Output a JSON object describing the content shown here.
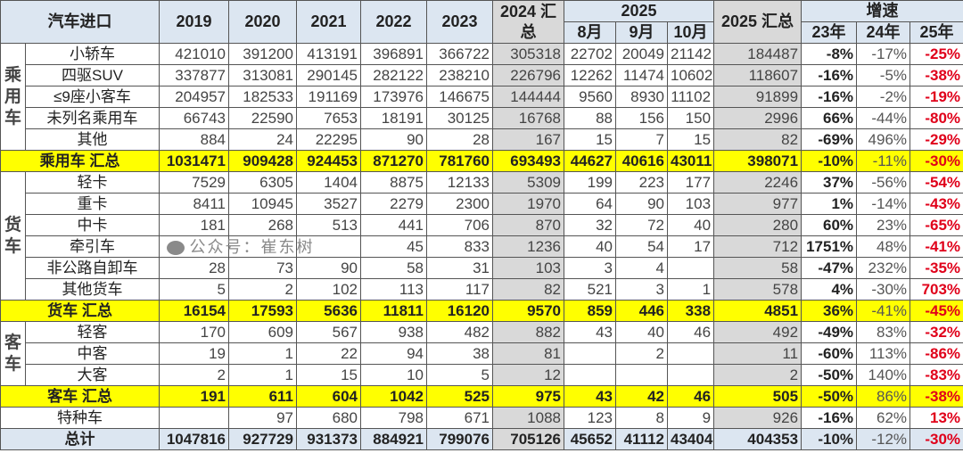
{
  "header": {
    "title": "汽车进口",
    "years": [
      "2019",
      "2020",
      "2021",
      "2022",
      "2023"
    ],
    "total2024": "2024 汇总",
    "year2025": "2025",
    "months": [
      "8月",
      "9月",
      "10月"
    ],
    "total2025": "2025 汇总",
    "growth": "增速",
    "growth_cols": [
      "23年",
      "24年",
      "25年"
    ]
  },
  "colors": {
    "header": "#dce6f1",
    "gray": "#d9d9d9",
    "subtotal": "#ffff00",
    "negative": "#e0001a"
  },
  "groups": [
    {
      "category": "乘用车",
      "rows": [
        {
          "name": "小轿车",
          "values": [
            "421010",
            "391200",
            "413191",
            "396891",
            "366722",
            "305318",
            "22702",
            "20049",
            "21142",
            "184487",
            "-8%",
            "-17%",
            "-25%"
          ]
        },
        {
          "name": "四驱SUV",
          "values": [
            "337877",
            "313081",
            "290145",
            "282122",
            "238210",
            "226796",
            "12262",
            "11474",
            "10602",
            "118607",
            "-16%",
            "-5%",
            "-38%"
          ]
        },
        {
          "name": "≤9座小客车",
          "values": [
            "204957",
            "182533",
            "191169",
            "173976",
            "146675",
            "144444",
            "9560",
            "8930",
            "11102",
            "91899",
            "-16%",
            "-2%",
            "-19%"
          ]
        },
        {
          "name": "未列名乘用车",
          "values": [
            "66743",
            "22590",
            "7653",
            "18191",
            "30125",
            "16768",
            "88",
            "156",
            "150",
            "2996",
            "66%",
            "-44%",
            "-80%"
          ]
        },
        {
          "name": "其他",
          "values": [
            "884",
            "24",
            "22295",
            "90",
            "28",
            "167",
            "15",
            "7",
            "15",
            "82",
            "-69%",
            "496%",
            "-29%"
          ]
        }
      ],
      "subtotal": {
        "name": "乘用车 汇总",
        "values": [
          "1031471",
          "909428",
          "924453",
          "871270",
          "781760",
          "693493",
          "44627",
          "40616",
          "43011",
          "398071",
          "-10%",
          "-11%",
          "-30%"
        ]
      }
    },
    {
      "category": "货车",
      "rows": [
        {
          "name": "轻卡",
          "values": [
            "7529",
            "6305",
            "1404",
            "8875",
            "12133",
            "5309",
            "199",
            "223",
            "177",
            "2246",
            "37%",
            "-56%",
            "-54%"
          ]
        },
        {
          "name": "重卡",
          "values": [
            "8411",
            "10945",
            "3527",
            "2279",
            "2300",
            "1970",
            "64",
            "90",
            "103",
            "977",
            "1%",
            "-14%",
            "-43%"
          ]
        },
        {
          "name": "中卡",
          "values": [
            "181",
            "268",
            "513",
            "441",
            "706",
            "870",
            "32",
            "72",
            "40",
            "280",
            "60%",
            "23%",
            "-65%"
          ]
        },
        {
          "name": "牵引车",
          "values": [
            "",
            "",
            "",
            "45",
            "833",
            "1236",
            "40",
            "54",
            "17",
            "712",
            "1751%",
            "48%",
            "-41%"
          ]
        },
        {
          "name": "非公路自卸车",
          "values": [
            "28",
            "73",
            "90",
            "58",
            "31",
            "103",
            "3",
            "4",
            "",
            "58",
            "-47%",
            "232%",
            "-35%"
          ]
        },
        {
          "name": "其他货车",
          "values": [
            "5",
            "2",
            "102",
            "113",
            "117",
            "82",
            "521",
            "3",
            "1",
            "578",
            "4%",
            "-30%",
            "703%"
          ]
        }
      ],
      "subtotal": {
        "name": "货车 汇总",
        "values": [
          "16154",
          "17593",
          "5636",
          "11811",
          "16120",
          "9570",
          "859",
          "446",
          "338",
          "4851",
          "36%",
          "-41%",
          "-45%"
        ]
      }
    },
    {
      "category": "客车",
      "rows": [
        {
          "name": "轻客",
          "values": [
            "170",
            "609",
            "567",
            "938",
            "482",
            "882",
            "43",
            "40",
            "46",
            "492",
            "-49%",
            "83%",
            "-32%"
          ]
        },
        {
          "name": "中客",
          "values": [
            "19",
            "1",
            "22",
            "94",
            "38",
            "81",
            "",
            "2",
            "",
            "11",
            "-60%",
            "113%",
            "-86%"
          ]
        },
        {
          "name": "大客",
          "values": [
            "2",
            "1",
            "15",
            "10",
            "5",
            "12",
            "",
            "",
            "",
            "2",
            "-50%",
            "140%",
            "-83%"
          ]
        }
      ],
      "subtotal": {
        "name": "客车 汇总",
        "values": [
          "191",
          "611",
          "604",
          "1042",
          "525",
          "975",
          "43",
          "42",
          "46",
          "505",
          "-50%",
          "86%",
          "-38%"
        ]
      }
    }
  ],
  "special": {
    "name": "特种车",
    "values": [
      "",
      "97",
      "680",
      "798",
      "671",
      "1088",
      "123",
      "8",
      "9",
      "926",
      "-16%",
      "62%",
      "13%"
    ]
  },
  "total": {
    "name": "总计",
    "values": [
      "1047816",
      "927729",
      "931373",
      "884921",
      "799076",
      "705126",
      "45652",
      "41112",
      "43404",
      "404353",
      "-10%",
      "-12%",
      "-30%"
    ]
  },
  "watermark": "公众号：崔东树"
}
